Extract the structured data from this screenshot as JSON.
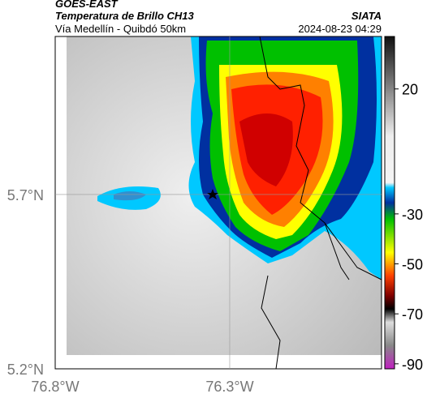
{
  "header": {
    "title": "GOES-EAST",
    "subtitle": "Temperatura de Brillo CH13",
    "source": "SIATA",
    "route": "Vía Medellín - Quibdó 50km",
    "timestamp": "2024-08-23 04:29"
  },
  "map": {
    "xlim": [
      -76.8,
      -75.865
    ],
    "ylim": [
      5.2,
      6.153
    ],
    "xticks": [
      {
        "value": -76.8,
        "label": "76.8°W"
      },
      {
        "value": -76.3,
        "label": "76.3°W"
      }
    ],
    "yticks": [
      {
        "value": 5.2,
        "label": "5.2°N"
      },
      {
        "value": 5.7,
        "label": "5.7°N"
      }
    ]
  },
  "colorbar": {
    "lim": [
      41,
      -92
    ],
    "ticks": [
      20,
      -30,
      -50,
      -70,
      -90
    ]
  }
}
